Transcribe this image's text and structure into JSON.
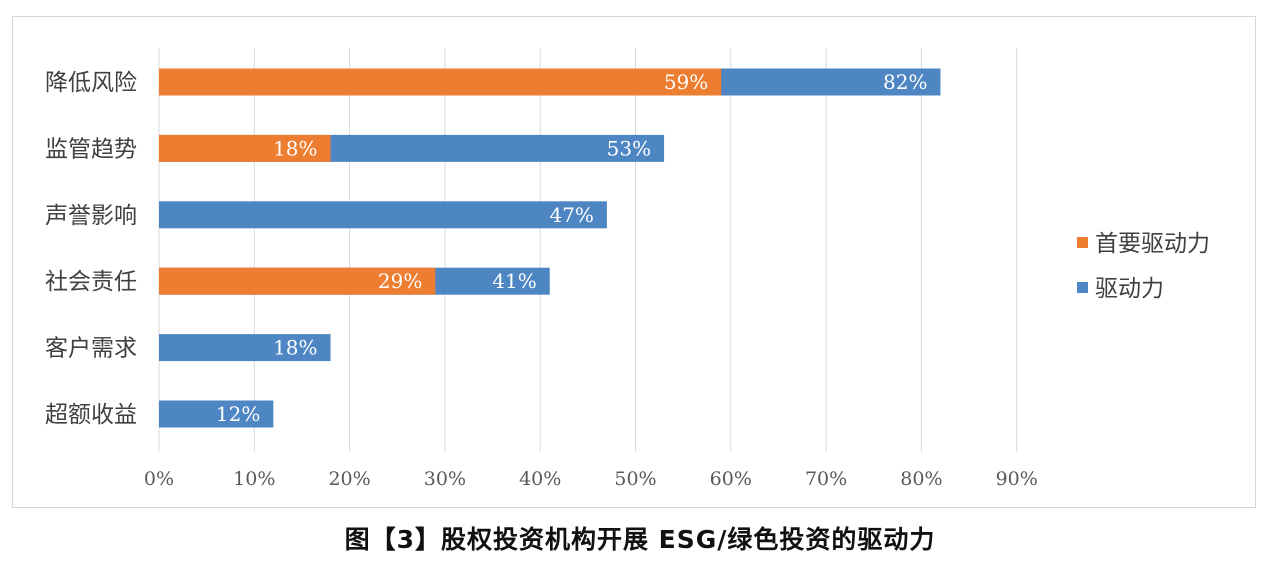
{
  "figure_caption": "图【3】股权投资机构开展 ESG/绿色投资的驱动力",
  "chart_data": {
    "type": "bar",
    "orientation": "horizontal",
    "categories": [
      "降低风险",
      "监管趋势",
      "声誉影响",
      "社会责任",
      "客户需求",
      "超额收益"
    ],
    "series": [
      {
        "name": "首要驱动力",
        "values": [
          59,
          18,
          null,
          29,
          null,
          null
        ],
        "labels": [
          "59%",
          "18%",
          "",
          "29%",
          "",
          ""
        ],
        "color": "#ed7d31"
      },
      {
        "name": "驱动力",
        "values": [
          82,
          53,
          47,
          41,
          18,
          12
        ],
        "labels": [
          "82%",
          "53%",
          "47%",
          "41%",
          "18%",
          "12%"
        ],
        "color": "#4e86c3"
      }
    ],
    "xlim": [
      0,
      90
    ],
    "x_ticks": [
      "0%",
      "10%",
      "20%",
      "30%",
      "40%",
      "50%",
      "60%",
      "70%",
      "80%",
      "90%"
    ],
    "grid": true,
    "legend_position": "right"
  }
}
